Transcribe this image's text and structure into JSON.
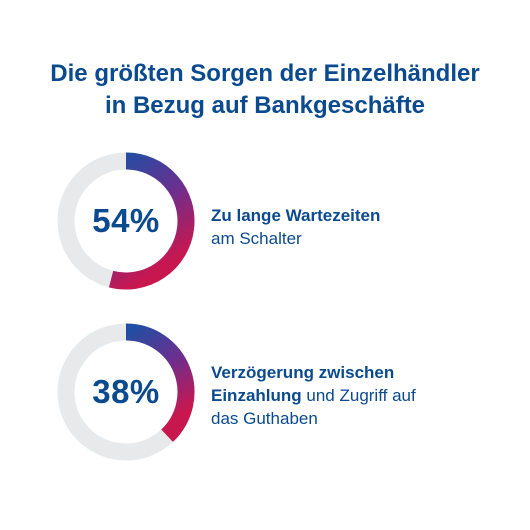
{
  "title_lines": [
    "Die größten Sorgen der Einzelhändler",
    "in Bezug auf Bankgeschäfte"
  ],
  "colors": {
    "text": "#0b4a8f",
    "track": "#e7e9eb",
    "gradient_start": "#1f4fa3",
    "gradient_mid": "#6b2f8f",
    "gradient_end": "#c8174f"
  },
  "chart_data": [
    {
      "type": "pie",
      "value_label": "54%",
      "values": [
        54,
        46
      ],
      "label_lines": [
        {
          "bold": "Zu lange Wartezeiten",
          "regular": ""
        },
        {
          "bold": "",
          "regular": "am Schalter"
        }
      ]
    },
    {
      "type": "pie",
      "value_label": "38%",
      "values": [
        38,
        62
      ],
      "label_lines": [
        {
          "bold": "Verzögerung zwischen",
          "regular": ""
        },
        {
          "bold": "Einzahlung",
          "regular": " und Zugriff auf"
        },
        {
          "bold": "",
          "regular": "das Guthaben"
        }
      ]
    }
  ]
}
